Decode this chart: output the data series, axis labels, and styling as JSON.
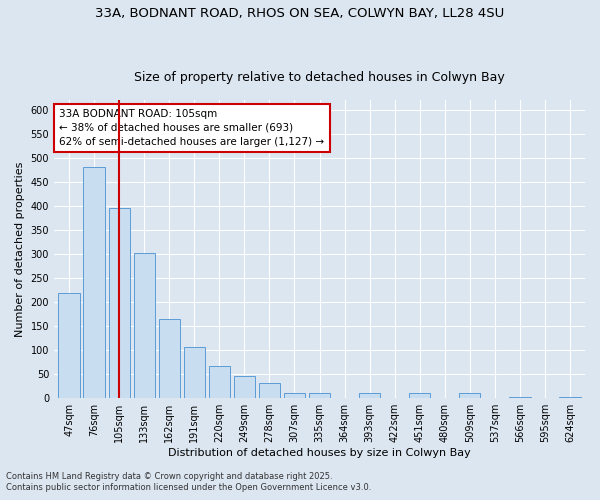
{
  "title_line1": "33A, BODNANT ROAD, RHOS ON SEA, COLWYN BAY, LL28 4SU",
  "title_line2": "Size of property relative to detached houses in Colwyn Bay",
  "xlabel": "Distribution of detached houses by size in Colwyn Bay",
  "ylabel": "Number of detached properties",
  "categories": [
    "47sqm",
    "76sqm",
    "105sqm",
    "133sqm",
    "162sqm",
    "191sqm",
    "220sqm",
    "249sqm",
    "278sqm",
    "307sqm",
    "335sqm",
    "364sqm",
    "393sqm",
    "422sqm",
    "451sqm",
    "480sqm",
    "509sqm",
    "537sqm",
    "566sqm",
    "595sqm",
    "624sqm"
  ],
  "values": [
    218,
    480,
    395,
    302,
    163,
    105,
    65,
    45,
    30,
    9,
    9,
    0,
    9,
    0,
    9,
    0,
    9,
    0,
    2,
    0,
    2
  ],
  "bar_color": "#c9ddf0",
  "bar_edge_color": "#5b9bd5",
  "highlight_index": 2,
  "annotation_text": "33A BODNANT ROAD: 105sqm\n← 38% of detached houses are smaller (693)\n62% of semi-detached houses are larger (1,127) →",
  "annotation_box_color": "#ffffff",
  "annotation_box_edge": "#cc0000",
  "vline_color": "#cc0000",
  "ylim": [
    0,
    620
  ],
  "yticks": [
    0,
    50,
    100,
    150,
    200,
    250,
    300,
    350,
    400,
    450,
    500,
    550,
    600
  ],
  "bg_color": "#dce6f1",
  "footer_line1": "Contains HM Land Registry data © Crown copyright and database right 2025.",
  "footer_line2": "Contains public sector information licensed under the Open Government Licence v3.0.",
  "title1_fontsize": 9.5,
  "title2_fontsize": 9.0,
  "axis_label_fontsize": 8,
  "tick_fontsize": 7,
  "annotation_fontsize": 7.5,
  "footer_fontsize": 6
}
